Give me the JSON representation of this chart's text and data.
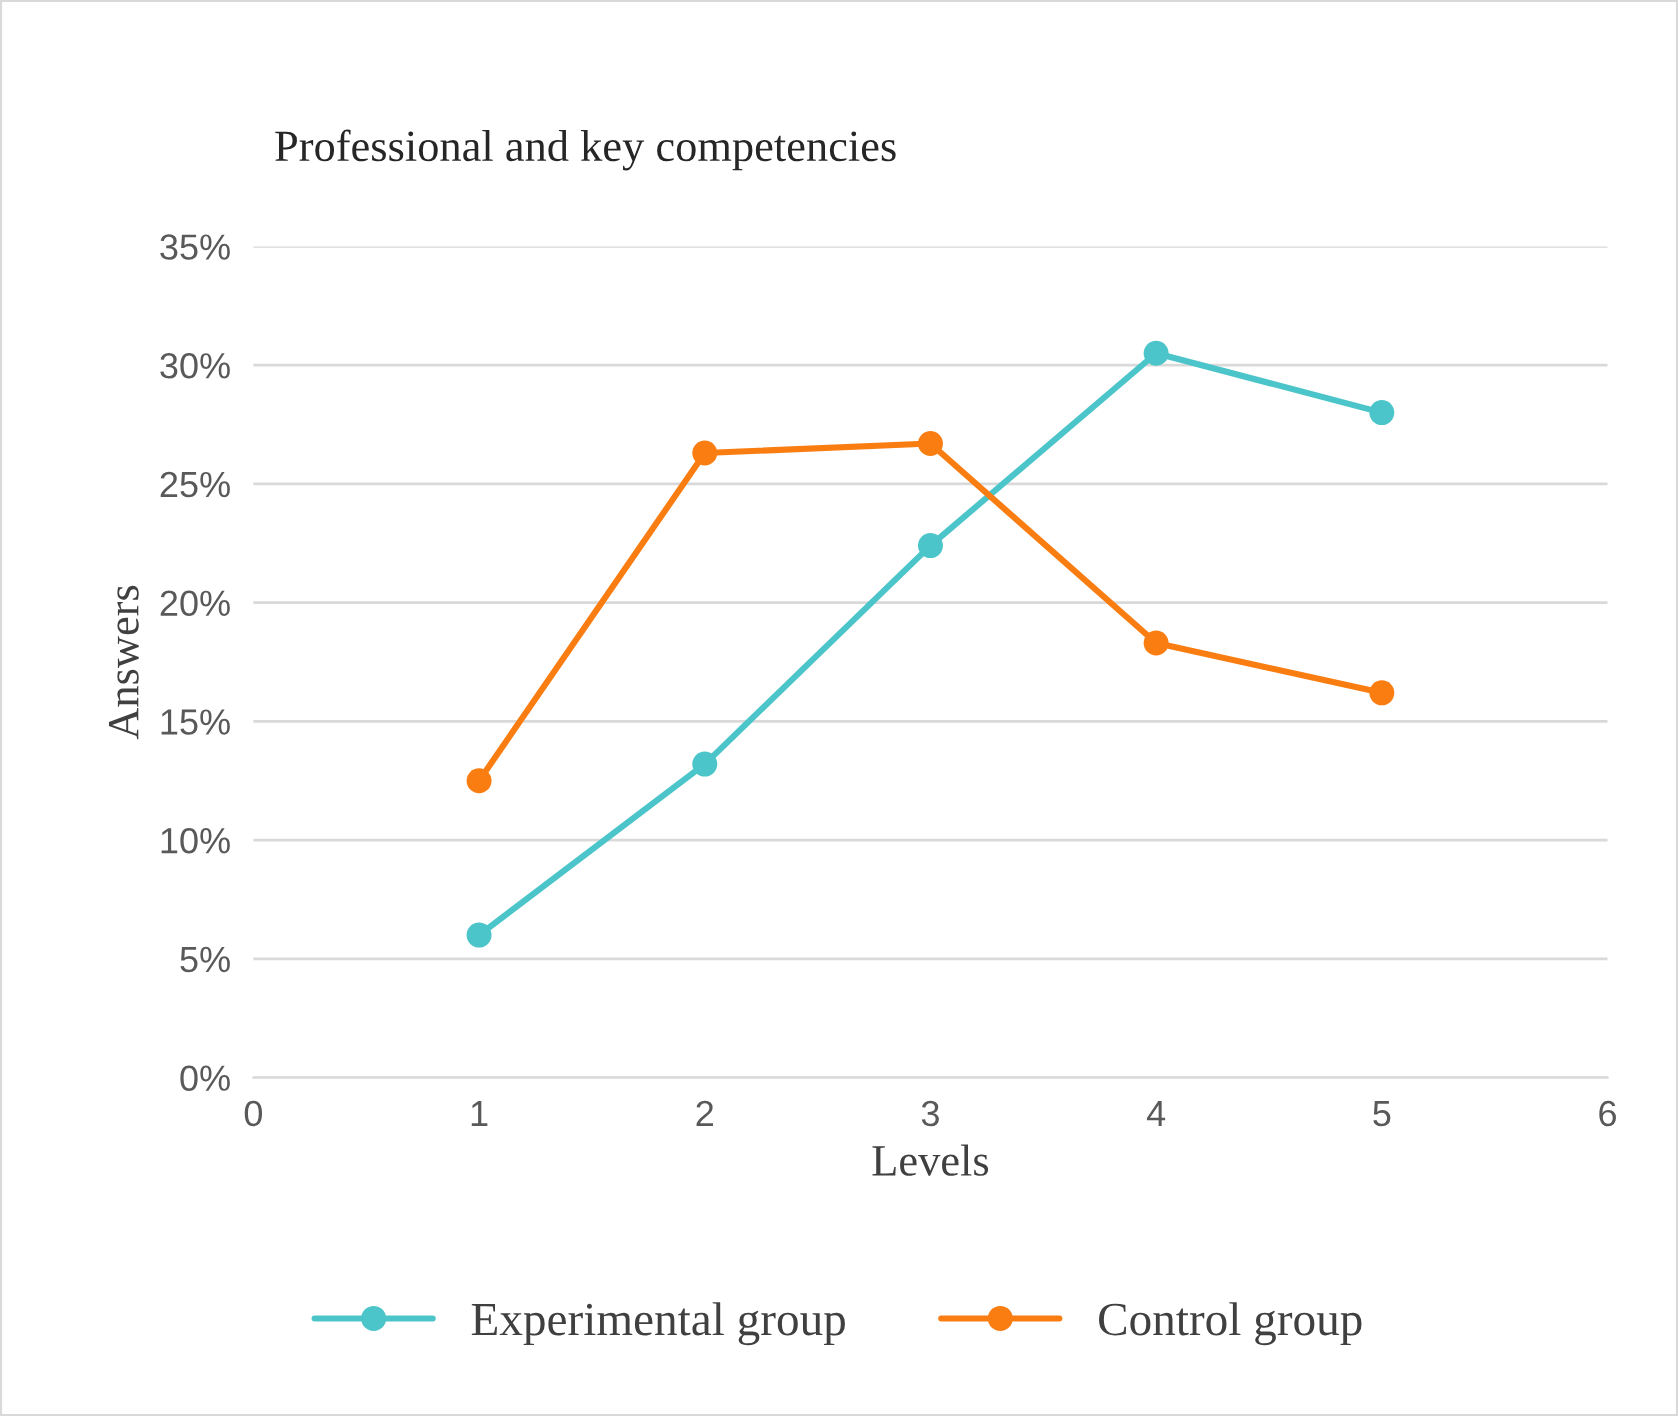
{
  "chart_data": {
    "type": "line",
    "title": "Professional and key competencies",
    "xlabel": "Levels",
    "ylabel": "Answers",
    "x": [
      1,
      2,
      3,
      4,
      5
    ],
    "series": [
      {
        "name": "Experimental group",
        "color": "#4bc5c9",
        "values": [
          6.0,
          13.2,
          22.4,
          30.5,
          28.0
        ]
      },
      {
        "name": "Control group",
        "color": "#fa7d12",
        "values": [
          12.5,
          26.3,
          26.7,
          18.3,
          16.2
        ]
      }
    ],
    "xlim": [
      0,
      6
    ],
    "xticks": [
      0,
      1,
      2,
      3,
      4,
      5,
      6
    ],
    "ylim": [
      0,
      35
    ],
    "yticks": [
      {
        "value": 0,
        "label": "0%"
      },
      {
        "value": 5,
        "label": "5%"
      },
      {
        "value": 10,
        "label": "10%"
      },
      {
        "value": 15,
        "label": "15%"
      },
      {
        "value": 20,
        "label": "20%"
      },
      {
        "value": 25,
        "label": "25%"
      },
      {
        "value": 30,
        "label": "30%"
      },
      {
        "value": 35,
        "label": "35%"
      }
    ],
    "grid": "y",
    "legend": "bottom",
    "marker": "circle",
    "line_style": "solid"
  }
}
